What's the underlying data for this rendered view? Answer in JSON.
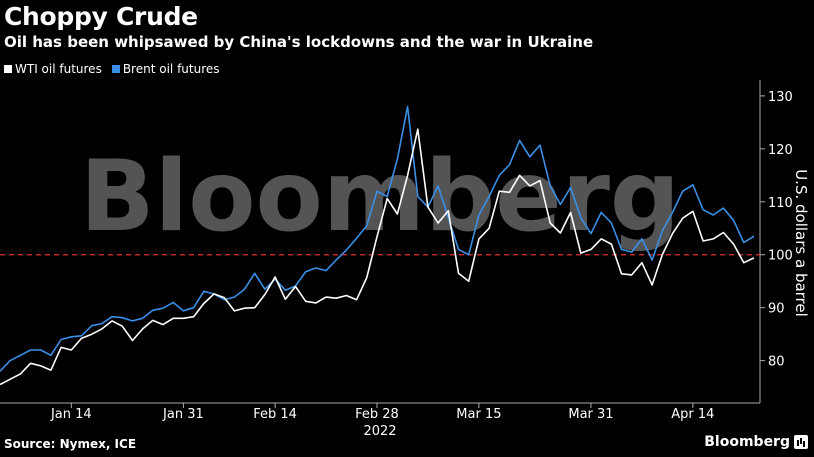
{
  "header": {
    "title": "Choppy Crude",
    "subtitle": "Oil has been whipsawed by China's lockdowns and the war in Ukraine"
  },
  "footer": {
    "source": "Source: Nymex, ICE",
    "logo": "Bloomberg"
  },
  "watermark": "Bloomberg",
  "colors": {
    "wti": "#ffffff",
    "brent": "#3a8fe6",
    "reference": "#e03030",
    "axis": "#aaaaaa"
  },
  "chart_data": {
    "type": "line",
    "title": "Choppy Crude",
    "subtitle": "Oil has been whipsawed by China's lockdowns and the war in Ukraine",
    "ylabel": "U.S. dollars a barrel",
    "xlabel_year": "2022",
    "ylim": [
      72,
      133
    ],
    "yticks": [
      80,
      90,
      100,
      110,
      120,
      130
    ],
    "xticks": [
      {
        "x": 7,
        "label": "Jan 14"
      },
      {
        "x": 18,
        "label": "Jan 31"
      },
      {
        "x": 27,
        "label": "Feb 14"
      },
      {
        "x": 37,
        "label": "Feb 28"
      },
      {
        "x": 47,
        "label": "Mar 15"
      },
      {
        "x": 58,
        "label": "Mar 31"
      },
      {
        "x": 68,
        "label": "Apr 14"
      }
    ],
    "reference_line": 100,
    "legend_position": "top-left",
    "series": [
      {
        "name": "WTI oil futures",
        "values": [
          75.5,
          76.5,
          77.5,
          79.5,
          79,
          78.2,
          82.5,
          82,
          84.2,
          85,
          86,
          87.5,
          86.5,
          83.8,
          86,
          87.6,
          86.8,
          88,
          88,
          88.3,
          90.8,
          92.6,
          91.9,
          89.4,
          89.9,
          90,
          92.5,
          95.8,
          91.6,
          94,
          91.2,
          90.9,
          92,
          91.8,
          92.3,
          91.5,
          95.7,
          103.4,
          110.6,
          107.7,
          115,
          123.7,
          109,
          106,
          108.3,
          96.5,
          95,
          103,
          105,
          112,
          111.8,
          115,
          113,
          114,
          106,
          104.1,
          108,
          100.3,
          101,
          103,
          102,
          96.4,
          96.2,
          98.5,
          94.3,
          100,
          104,
          106.9,
          108.2,
          102.6,
          103,
          104.2,
          102,
          98.5,
          99.4
        ],
        "color": "#ffffff"
      },
      {
        "name": "Brent oil futures",
        "values": [
          78,
          80,
          81,
          82,
          82,
          81,
          84,
          84.5,
          84.7,
          86.6,
          87,
          88.3,
          88.1,
          87.5,
          88,
          89.5,
          89.9,
          91,
          89.4,
          90,
          93.1,
          92.6,
          91.5,
          92,
          93.5,
          96.5,
          93.5,
          95.4,
          93.3,
          94.1,
          96.8,
          97.5,
          97,
          99,
          100.9,
          103.1,
          105.5,
          112,
          111,
          118.1,
          127.98,
          111,
          109,
          113,
          107,
          101,
          100,
          107.5,
          111,
          115,
          117,
          121.6,
          118.5,
          120.7,
          113,
          109.5,
          112.7,
          107,
          104,
          108,
          106,
          101,
          100.5,
          103,
          99,
          104.5,
          108,
          112,
          113.2,
          108.5,
          107.5,
          108.8,
          106.5,
          102.3,
          103.5
        ],
        "color": "#3a8fe6"
      }
    ]
  }
}
